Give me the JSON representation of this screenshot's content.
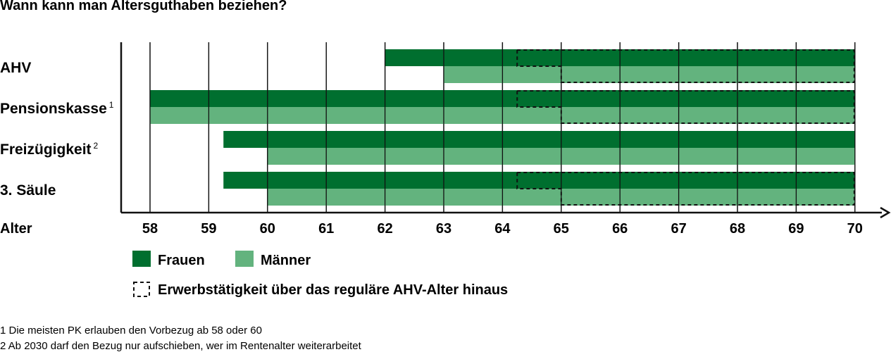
{
  "chart_data": {
    "type": "bar",
    "title": "Wann kann man Altersguthaben beziehen?",
    "xlabel": "Alter",
    "xlim": [
      57.5,
      70.5
    ],
    "x_ticks": [
      58,
      59,
      60,
      61,
      62,
      63,
      64,
      65,
      66,
      67,
      68,
      69,
      70
    ],
    "categories": [
      {
        "label": "AHV",
        "note": ""
      },
      {
        "label": "Pensionskasse",
        "note": "1"
      },
      {
        "label": "Freizügigkeit",
        "note": "2"
      },
      {
        "label": "3. Säule",
        "note": ""
      }
    ],
    "series": [
      {
        "name": "Frauen",
        "color": "#006f2f",
        "ranges": [
          [
            62,
            70
          ],
          [
            58,
            70
          ],
          [
            59.25,
            70
          ],
          [
            59.25,
            70
          ]
        ]
      },
      {
        "name": "Männer",
        "color": "#63b37e",
        "ranges": [
          [
            63,
            70
          ],
          [
            58,
            70
          ],
          [
            60,
            70
          ],
          [
            60,
            70
          ]
        ]
      }
    ],
    "dashed_ranges": [
      {
        "category": "AHV",
        "frauen_from": 64.25,
        "maenner_from": 65,
        "to": 70
      },
      {
        "category": "Pensionskasse",
        "frauen_from": 64.25,
        "maenner_from": 65,
        "to": 70
      },
      {
        "category": "3. Säule",
        "frauen_from": 64.25,
        "maenner_from": 65,
        "to": 70
      }
    ],
    "legend": {
      "frauen": "Frauen",
      "maenner": "Männer",
      "dashed": "Erwerbstätigkeit über das reguläre AHV-Alter hinaus"
    },
    "footnotes": [
      "1 Die meisten PK erlauben den Vorbezug ab 58 oder 60",
      "2 Ab 2030 darf den Bezug nur aufschieben, wer im Rentenalter weiterarbeitet"
    ]
  }
}
